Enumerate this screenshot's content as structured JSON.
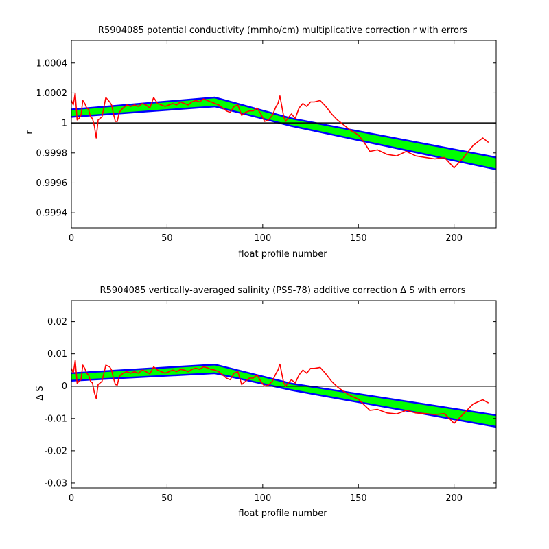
{
  "chart_data": [
    {
      "type": "line",
      "title": "R5904085 potential conductivity (mmho/cm) multiplicative correction r with errors",
      "xlabel": "float profile number",
      "ylabel": "r",
      "xlim": [
        0,
        222
      ],
      "ylim": [
        0.9993,
        1.00055
      ],
      "xticks": [
        0,
        50,
        100,
        150,
        200
      ],
      "xtick_labels": [
        "0",
        "50",
        "100",
        "150",
        "200"
      ],
      "yticks": [
        0.9994,
        0.9996,
        0.9998,
        1.0,
        1.0002,
        1.0004
      ],
      "ytick_labels": [
        "0.9994",
        "0.9996",
        "0.9998",
        "1",
        "1.0002",
        "1.0004"
      ],
      "reference_line": 1.0,
      "grid": false,
      "colors": {
        "band_fill": "#00ff00",
        "band_edge": "#0000ff",
        "raw": "#ff0000",
        "reference": "#000000"
      },
      "band": {
        "x": [
          0,
          75,
          115,
          222
        ],
        "upper": [
          1.00009,
          1.00017,
          1.00003,
          0.99977
        ],
        "lower": [
          1.00004,
          1.00011,
          0.99998,
          0.99969
        ]
      },
      "series": [
        {
          "x": [
            0,
            1,
            2,
            3,
            4,
            5,
            6,
            7,
            8,
            9,
            10,
            11,
            12,
            13,
            14,
            16,
            18,
            20,
            21,
            22,
            23,
            24,
            25,
            27,
            29,
            31,
            33,
            35,
            37,
            39,
            41,
            43,
            45,
            47,
            49,
            51,
            53,
            55,
            57,
            59,
            61,
            63,
            65,
            67,
            69,
            71,
            73,
            75,
            77,
            79,
            81,
            83,
            85,
            87,
            89,
            91,
            93,
            95,
            97,
            99,
            101,
            103,
            105,
            107,
            108,
            109,
            110,
            111,
            112,
            113,
            115,
            117,
            119,
            121,
            123,
            125,
            127,
            130,
            133,
            136,
            139,
            142,
            146,
            150,
            153,
            156,
            160,
            165,
            170,
            175,
            180,
            185,
            190,
            195,
            200,
            205,
            210,
            215,
            218
          ],
          "values": [
            1.00015,
            1.00012,
            1.0002,
            1.00002,
            1.00003,
            1.00005,
            1.00015,
            1.00013,
            1.0001,
            1.00009,
            1.00004,
            1.00003,
            0.99998,
            0.9999,
            1.00002,
            1.00004,
            1.00017,
            1.00014,
            1.00012,
            1.00006,
            1.00001,
            1.00001,
            1.00007,
            1.0001,
            1.00012,
            1.00011,
            1.00012,
            1.00011,
            1.00013,
            1.00012,
            1.0001,
            1.00017,
            1.00013,
            1.00012,
            1.00011,
            1.00012,
            1.00013,
            1.00012,
            1.00014,
            1.00013,
            1.00012,
            1.00014,
            1.00015,
            1.00014,
            1.00016,
            1.00015,
            1.00014,
            1.00013,
            1.00012,
            1.0001,
            1.00008,
            1.00007,
            1.00011,
            1.00012,
            1.00005,
            1.00007,
            1.00008,
            1.00008,
            1.0001,
            1.00006,
            1.00001,
            1.00002,
            1.00005,
            1.00011,
            1.00013,
            1.00018,
            1.00011,
            1.00004,
            1.00001,
            1.00003,
            1.00006,
            1.00003,
            1.0001,
            1.00013,
            1.00011,
            1.00014,
            1.00014,
            1.00015,
            1.00011,
            1.00006,
            1.00002,
            0.99999,
            0.99995,
            0.99992,
            0.99987,
            0.99981,
            0.99982,
            0.99979,
            0.99978,
            0.99981,
            0.99978,
            0.99977,
            0.99976,
            0.99977,
            0.9997,
            0.99977,
            0.99985,
            0.9999,
            0.99987
          ]
        }
      ]
    },
    {
      "type": "line",
      "title": "R5904085 vertically-averaged salinity (PSS-78) additive correction Δ S with errors",
      "xlabel": "float profile number",
      "ylabel": "Δ S",
      "xlim": [
        0,
        222
      ],
      "ylim": [
        -0.0315,
        0.0265
      ],
      "xticks": [
        0,
        50,
        100,
        150,
        200
      ],
      "xtick_labels": [
        "0",
        "50",
        "100",
        "150",
        "200"
      ],
      "yticks": [
        -0.03,
        -0.02,
        -0.01,
        0.0,
        0.01,
        0.02
      ],
      "ytick_labels": [
        "-0.03",
        "-0.02",
        "-0.01",
        "0",
        "0.01",
        "0.02"
      ],
      "reference_line": 0.0,
      "grid": false,
      "colors": {
        "band_fill": "#00ff00",
        "band_edge": "#0000ff",
        "raw": "#ff0000",
        "reference": "#000000"
      },
      "band": {
        "x": [
          0,
          75,
          115,
          222
        ],
        "upper": [
          0.004,
          0.0067,
          0.0008,
          -0.009
        ],
        "lower": [
          0.0017,
          0.004,
          -0.0012,
          -0.0126
        ]
      },
      "series": [
        {
          "x": [
            0,
            1,
            2,
            3,
            4,
            5,
            6,
            7,
            8,
            9,
            10,
            11,
            12,
            13,
            14,
            16,
            18,
            20,
            21,
            22,
            23,
            24,
            25,
            27,
            29,
            31,
            33,
            35,
            37,
            39,
            41,
            43,
            45,
            47,
            49,
            51,
            53,
            55,
            57,
            59,
            61,
            63,
            65,
            67,
            69,
            71,
            73,
            75,
            77,
            79,
            81,
            83,
            85,
            87,
            89,
            91,
            93,
            95,
            97,
            99,
            101,
            103,
            105,
            107,
            108,
            109,
            110,
            111,
            112,
            113,
            115,
            117,
            119,
            121,
            123,
            125,
            127,
            130,
            133,
            136,
            139,
            142,
            146,
            150,
            153,
            156,
            160,
            165,
            170,
            175,
            180,
            185,
            190,
            195,
            200,
            205,
            210,
            215,
            218
          ],
          "values": [
            0.0055,
            0.004,
            0.008,
            0.0009,
            0.0015,
            0.002,
            0.0065,
            0.0055,
            0.004,
            0.0035,
            0.0015,
            0.001,
            -0.002,
            -0.0038,
            0.0005,
            0.0015,
            0.0065,
            0.006,
            0.005,
            0.0025,
            0.0005,
            0.0003,
            0.003,
            0.004,
            0.0045,
            0.004,
            0.0045,
            0.004,
            0.005,
            0.0045,
            0.0038,
            0.006,
            0.005,
            0.0045,
            0.004,
            0.0045,
            0.005,
            0.0045,
            0.0052,
            0.005,
            0.0045,
            0.0052,
            0.0056,
            0.0052,
            0.006,
            0.0057,
            0.0052,
            0.005,
            0.0045,
            0.0035,
            0.0025,
            0.002,
            0.004,
            0.0045,
            0.0005,
            0.0015,
            0.0025,
            0.0025,
            0.0035,
            0.0015,
            0.0,
            0.0004,
            0.0015,
            0.004,
            0.005,
            0.0068,
            0.0038,
            0.001,
            0.0,
            0.0008,
            0.002,
            0.001,
            0.0035,
            0.005,
            0.004,
            0.0055,
            0.0055,
            0.0058,
            0.0038,
            0.0015,
            -0.0002,
            -0.0015,
            -0.003,
            -0.004,
            -0.0058,
            -0.0075,
            -0.0072,
            -0.0083,
            -0.0086,
            -0.0075,
            -0.0083,
            -0.0085,
            -0.0088,
            -0.0085,
            -0.0115,
            -0.0085,
            -0.0055,
            -0.0042,
            -0.0052
          ]
        }
      ]
    }
  ]
}
